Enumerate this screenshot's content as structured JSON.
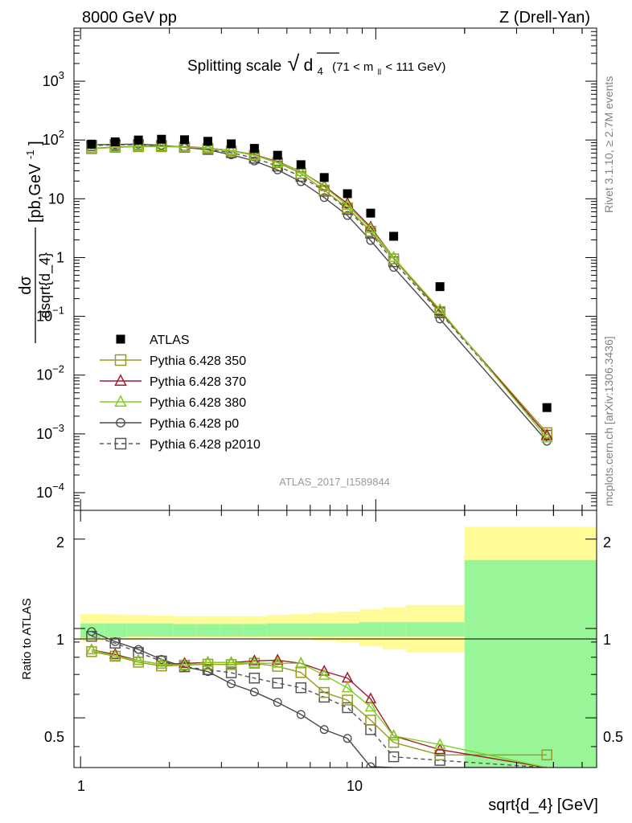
{
  "header": {
    "left": "8000 GeV pp",
    "right": "Z (Drell-Yan)"
  },
  "title": {
    "prefix": "Splitting scale",
    "sqrt_symbol": "√",
    "var": "d",
    "var_sub": "4",
    "range_open": "(71 < m",
    "range_sub": "ll",
    "range_close": " < 111 GeV)"
  },
  "side_labels": {
    "rivet": "Rivet 3.1.10, ≥ 2.7M events",
    "mcplots": "mcplots.cern.ch [arXiv:1306.3436]"
  },
  "analysis_label": "ATLAS_2017_I1589844",
  "axes": {
    "main_ylabel_num": "dσ",
    "main_ylabel_den": "dsqrt{d_4}",
    "main_ylabel_unit": "[pb,GeV",
    "main_ylabel_unit_exp": "-1",
    "main_ylabel_unit_close": "]",
    "ratio_ylabel": "Ratio to ATLAS",
    "xlabel": "sqrt{d_4} [GeV]",
    "x_ticks": [
      "1",
      "10"
    ],
    "main_y_ticks": [
      {
        "base": "10",
        "exp": "3"
      },
      {
        "base": "10",
        "exp": "2"
      },
      {
        "base": "10",
        "exp": ""
      },
      {
        "base": "1",
        "exp": ""
      },
      {
        "base": "10",
        "exp": "−1"
      },
      {
        "base": "10",
        "exp": "−2"
      },
      {
        "base": "10",
        "exp": "−3"
      },
      {
        "base": "10",
        "exp": "−4"
      }
    ],
    "ratio_y_ticks": [
      "2",
      "1",
      "0.5"
    ]
  },
  "legend": [
    {
      "label": "ATLAS",
      "color": "#000000",
      "marker": "filled-square",
      "line": "none"
    },
    {
      "label": "Pythia 6.428 350",
      "color": "#9a9a23",
      "marker": "open-square",
      "line": "solid"
    },
    {
      "label": "Pythia 6.428 370",
      "color": "#a01c32",
      "marker": "open-triangle",
      "line": "solid"
    },
    {
      "label": "Pythia 6.428 380",
      "color": "#7fcf1f",
      "marker": "open-triangle",
      "line": "solid"
    },
    {
      "label": "Pythia 6.428 p0",
      "color": "#4a4a4a",
      "marker": "open-circle",
      "line": "solid"
    },
    {
      "label": "Pythia 6.428 p2010",
      "color": "#555555",
      "marker": "open-square",
      "line": "dashed"
    }
  ],
  "chart_data": {
    "type": "scatter",
    "x_scale": "log",
    "y_scale": "log",
    "xlim": [
      0.95,
      56
    ],
    "main_ylim": [
      5e-05,
      8000
    ],
    "ratio_ylim": [
      0.34,
      2.5
    ],
    "ratio_scale": "log",
    "x": [
      1.09,
      1.31,
      1.57,
      1.88,
      2.25,
      2.7,
      3.24,
      3.88,
      4.65,
      5.58,
      6.69,
      8.02,
      9.61,
      11.5,
      16.5,
      38.0
    ],
    "bin_edges": [
      1.0,
      1.2,
      1.43,
      1.72,
      2.06,
      2.47,
      2.96,
      3.55,
      4.26,
      5.1,
      6.12,
      7.34,
      8.8,
      10.55,
      12.65,
      20.0,
      56.0
    ],
    "series": [
      {
        "name": "ATLAS",
        "values": [
          85,
          93,
          100,
          103,
          101,
          95,
          86,
          72,
          55,
          38,
          23,
          12.2,
          5.7,
          2.3,
          0.32,
          0.0028
        ]
      },
      {
        "name": "Pythia 6.428 350",
        "values": [
          71,
          75,
          77,
          77,
          76,
          72,
          65,
          55,
          41,
          27,
          14,
          7.0,
          2.8,
          0.95,
          0.12,
          0.00105
        ]
      },
      {
        "name": "Pythia 6.428 370",
        "values": [
          72,
          76,
          78,
          78,
          77,
          73,
          66,
          56,
          43,
          29,
          16.5,
          8.3,
          3.3,
          1.0,
          0.125,
          0.00095
        ]
      },
      {
        "name": "Pythia 6.428 380",
        "values": [
          72,
          75,
          78,
          78,
          76,
          73,
          66,
          55,
          42,
          29,
          16,
          7.7,
          3.1,
          1.0,
          0.13,
          0.00085
        ]
      },
      {
        "name": "Pythia 6.428 p0",
        "values": [
          83,
          84,
          85,
          81,
          75,
          68,
          56,
          44,
          31,
          19.5,
          10.5,
          5.2,
          1.95,
          0.68,
          0.09,
          0.00075
        ]
      },
      {
        "name": "Pythia 6.428 p2010",
        "values": [
          80,
          83,
          83,
          80,
          75,
          69,
          61,
          49,
          36,
          24,
          13.5,
          6.6,
          2.6,
          0.85,
          0.115,
          0.00095
        ]
      }
    ],
    "ratio_band_inner": {
      "lower": [
        0.93,
        0.935,
        0.94,
        0.94,
        0.94,
        0.94,
        0.94,
        0.94,
        0.94,
        0.94,
        0.94,
        0.94,
        0.94,
        0.94,
        0.94,
        0.3
      ],
      "upper": [
        1.04,
        1.04,
        1.04,
        1.04,
        1.035,
        1.035,
        1.035,
        1.035,
        1.04,
        1.04,
        1.04,
        1.04,
        1.05,
        1.05,
        1.05,
        1.7
      ]
    },
    "ratio_band_outer": {
      "lower": [
        0.91,
        0.92,
        0.925,
        0.93,
        0.93,
        0.93,
        0.93,
        0.93,
        0.92,
        0.92,
        0.91,
        0.9,
        0.87,
        0.85,
        0.83,
        0.3
      ],
      "upper": [
        1.12,
        1.115,
        1.11,
        1.105,
        1.1,
        1.1,
        1.1,
        1.1,
        1.11,
        1.12,
        1.13,
        1.14,
        1.16,
        1.18,
        1.2,
        2.2
      ]
    },
    "colors": {
      "band_inner": "#98f598",
      "band_outer": "#fffb99"
    }
  }
}
